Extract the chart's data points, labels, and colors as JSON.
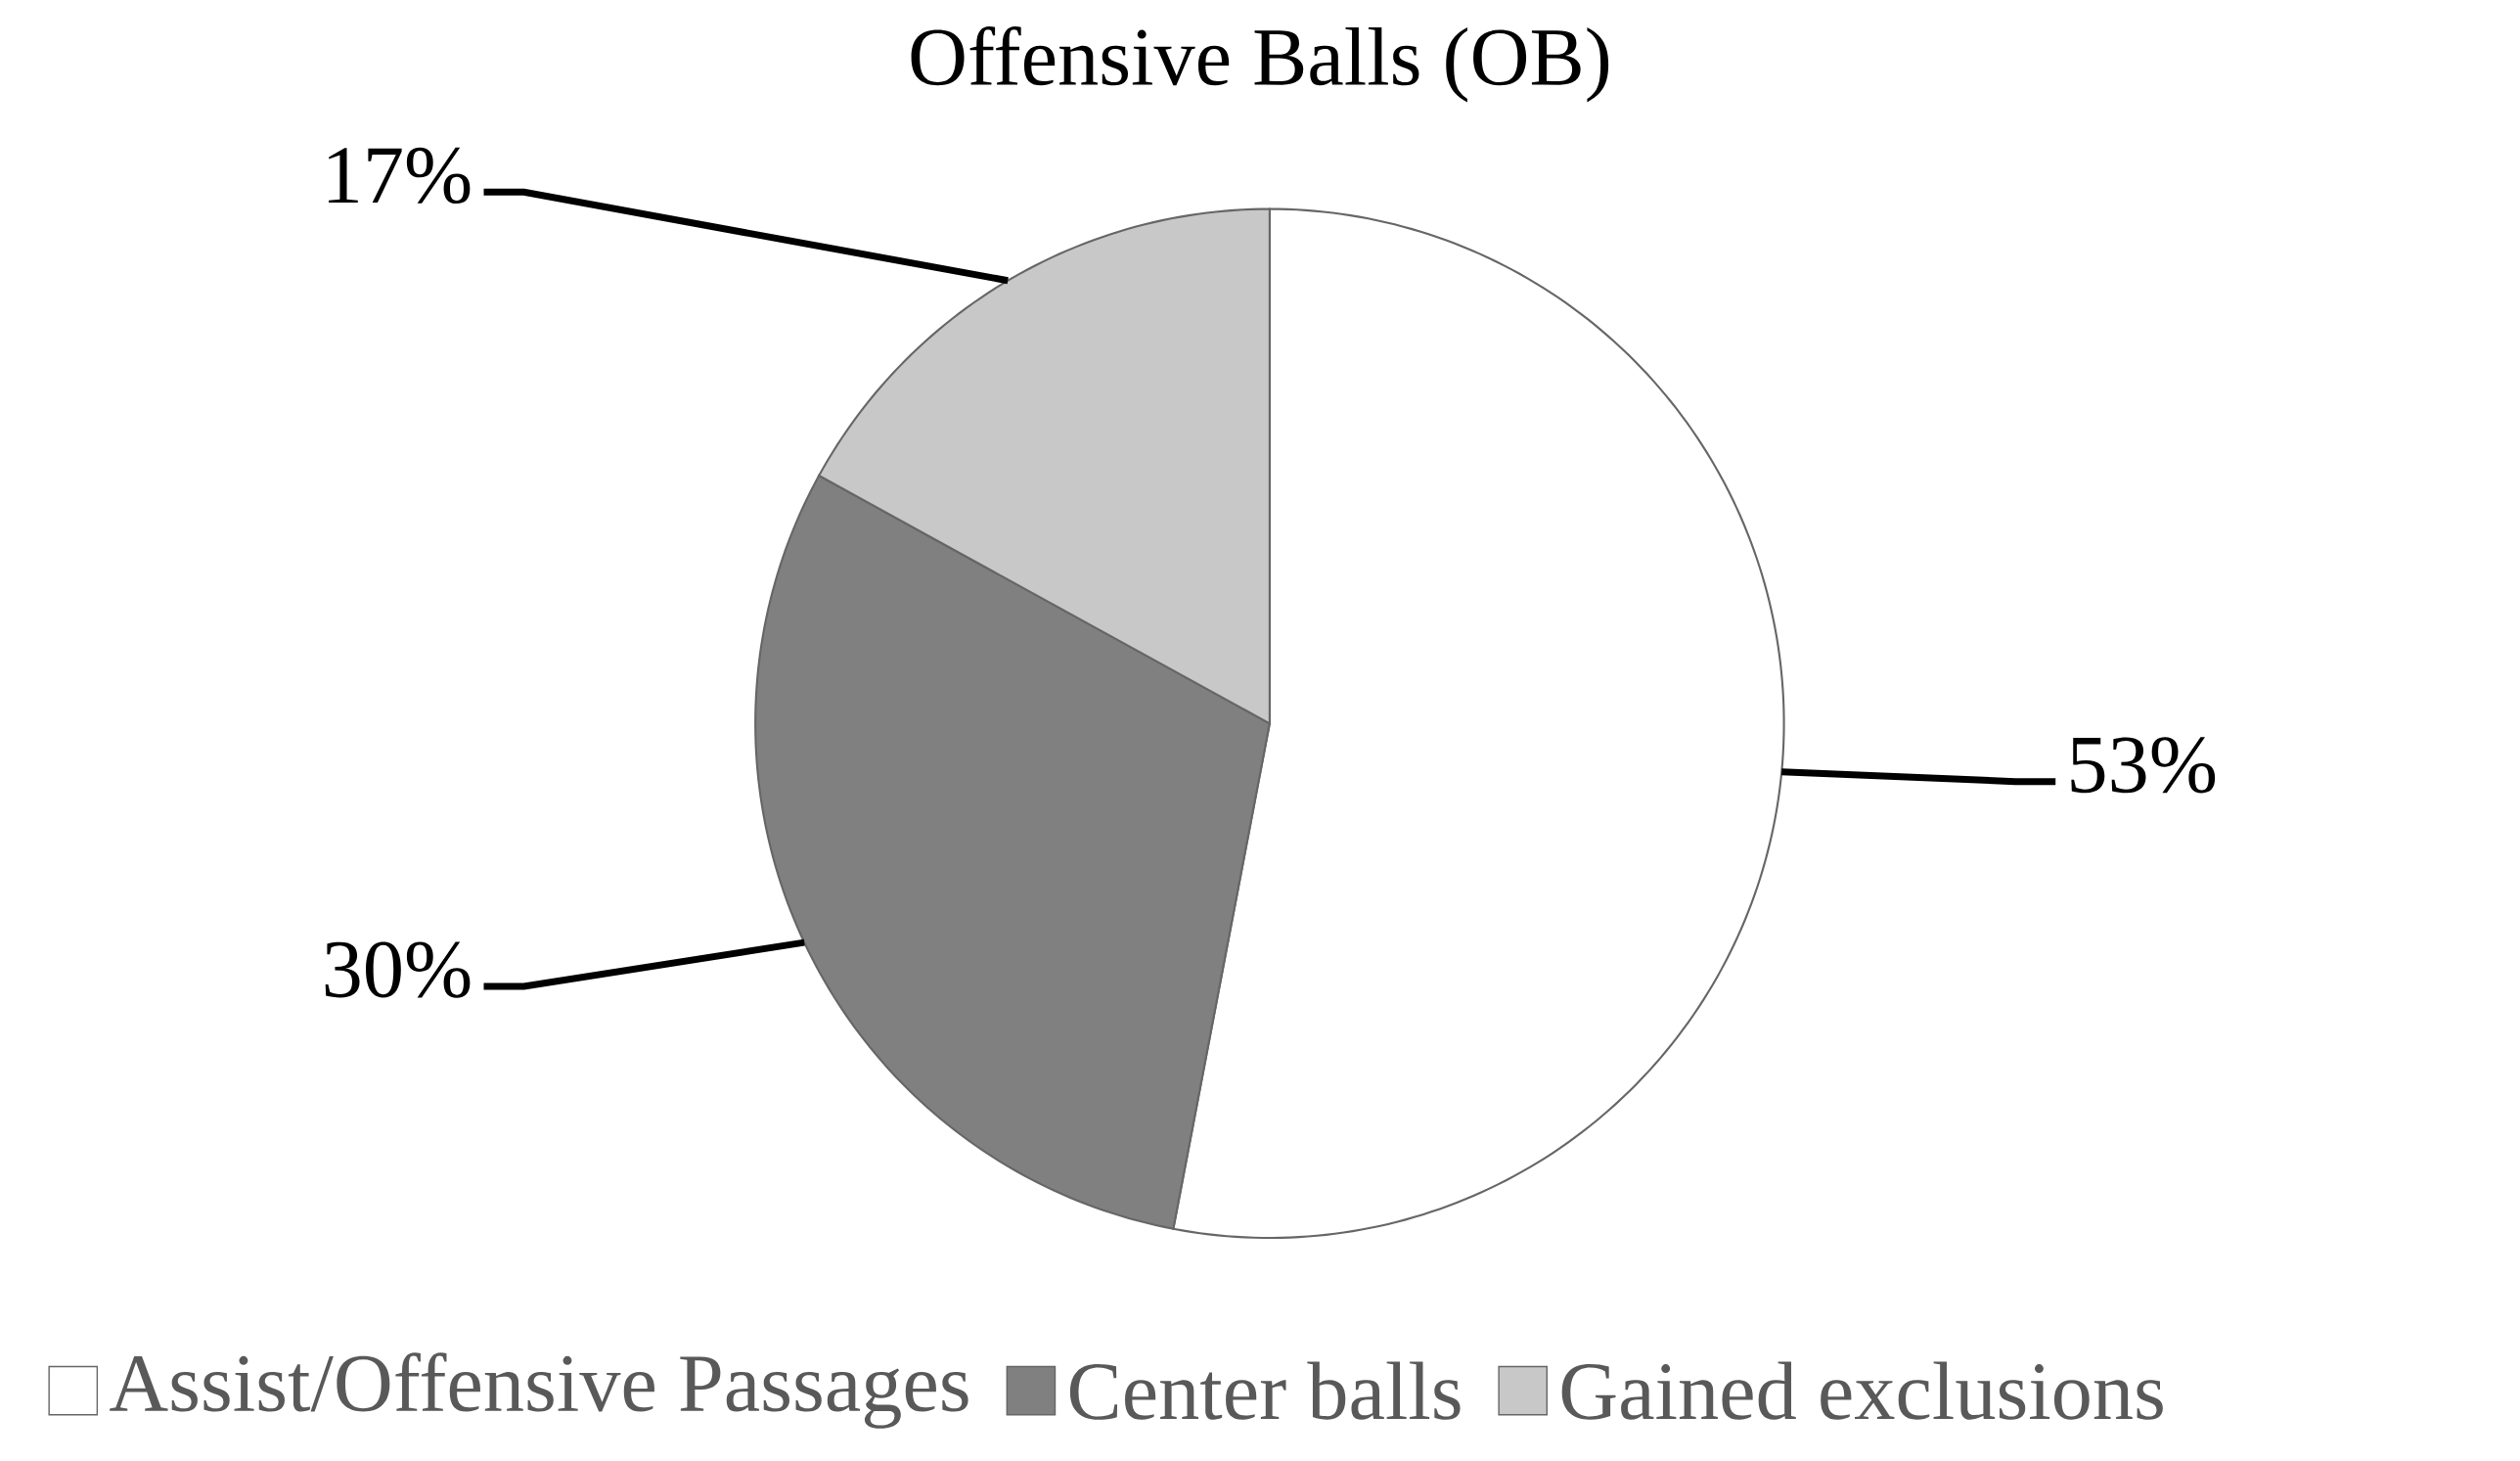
{
  "chart_data": {
    "type": "pie",
    "title": "Offensive Balls (OB)",
    "categories": [
      "Assist/Offensive Passages",
      "Center balls",
      "Gained exclusions"
    ],
    "values": [
      53,
      30,
      17
    ],
    "colors": [
      "#ffffff",
      "#808080",
      "#c8c8c8"
    ],
    "value_labels": [
      "53%",
      "30%",
      "17%"
    ],
    "legend": "bottom"
  }
}
